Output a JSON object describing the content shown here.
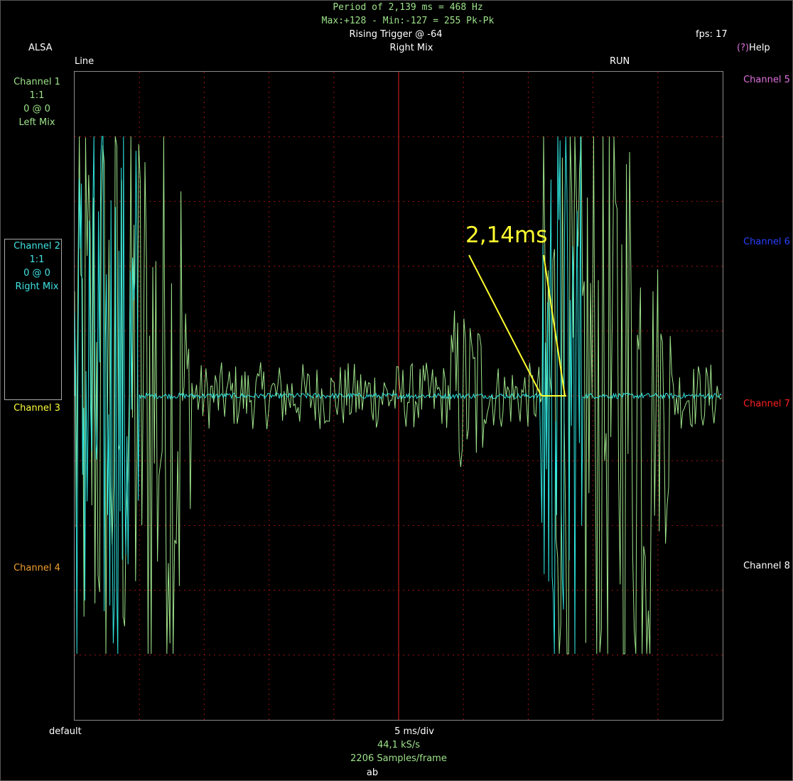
{
  "header": {
    "period_line": "Period of 2,139 ms =   468 Hz",
    "minmax_line": "Max:+128 - Min:-127 = 255 Pk-Pk",
    "trigger": "Rising Trigger @ -64",
    "channel_name": "Right Mix",
    "fps": "fps: 17",
    "alsa": "ALSA",
    "help_mark": "(?)",
    "help": "Help",
    "line": "Line",
    "run": "RUN"
  },
  "left_channels": [
    {
      "name": "Channel 1",
      "scale": "1:1",
      "offset": "0 @ 0",
      "source": "Left Mix",
      "color": "#9ee38a"
    },
    {
      "name": "Channel 2",
      "scale": "1:1",
      "offset": "0 @ 0",
      "source": "Right Mix",
      "color": "#41e3e3"
    },
    {
      "name": "Channel 3",
      "color": "#ffff3c"
    },
    {
      "name": "Channel 4",
      "color": "#f0a030"
    }
  ],
  "right_channels": [
    {
      "name": "Channel 5",
      "color": "#e070e0"
    },
    {
      "name": "Channel 6",
      "color": "#2840ff"
    },
    {
      "name": "Channel 7",
      "color": "#ff2020"
    },
    {
      "name": "Channel 8",
      "color": "#ffffff"
    }
  ],
  "footer": {
    "default": "default",
    "timebase": "5 ms/div",
    "rate": "44,1 kS/s",
    "samples": "2206 Samples/frame",
    "ab": "ab"
  },
  "annotation": {
    "label": "2,14ms",
    "color": "#ffff30"
  },
  "scope": {
    "trigger_line_color": "#e02020",
    "grid_color": "#a01010",
    "trace1_color": "#9ee38a",
    "trace2_color": "#2ee6e0"
  }
}
